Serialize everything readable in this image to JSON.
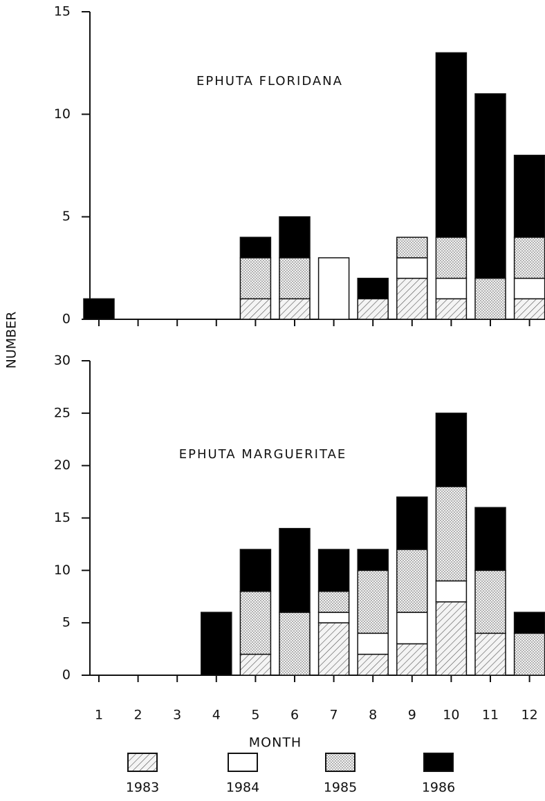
{
  "chart_data": [
    {
      "type": "stacked_bar",
      "title": "EPHUTA FLORIDANA",
      "y_label": "NUMBER",
      "ylim": [
        0,
        15
      ],
      "yticks": [
        0,
        5,
        10,
        15
      ],
      "series": [
        {
          "name": "1983",
          "pattern": "hatch",
          "color": "#000000",
          "values": [
            0,
            0,
            0,
            0,
            1,
            1,
            0,
            1,
            2,
            1,
            0,
            1
          ]
        },
        {
          "name": "1984",
          "pattern": "none",
          "color": "#ffffff",
          "values": [
            0,
            0,
            0,
            0,
            0,
            0,
            3,
            0,
            1,
            1,
            0,
            1
          ]
        },
        {
          "name": "1985",
          "pattern": "dots",
          "color": "#000000",
          "values": [
            0,
            0,
            0,
            0,
            2,
            2,
            0,
            0,
            1,
            2,
            2,
            2
          ]
        },
        {
          "name": "1986",
          "pattern": "solid",
          "color": "#000000",
          "values": [
            1,
            0,
            0,
            0,
            1,
            2,
            0,
            1,
            0,
            9,
            9,
            4
          ]
        }
      ]
    },
    {
      "type": "stacked_bar",
      "title": "EPHUTA MARGUERITAE",
      "x_label": "MONTH",
      "categories": [
        "1",
        "2",
        "3",
        "4",
        "5",
        "6",
        "7",
        "8",
        "9",
        "10",
        "11",
        "12"
      ],
      "ylim": [
        0,
        30
      ],
      "yticks": [
        0,
        5,
        10,
        15,
        20,
        25,
        30
      ],
      "series": [
        {
          "name": "1983",
          "pattern": "hatch",
          "color": "#000000",
          "values": [
            0,
            0,
            0,
            0,
            2,
            0,
            5,
            2,
            3,
            7,
            4,
            0
          ]
        },
        {
          "name": "1984",
          "pattern": "none",
          "color": "#ffffff",
          "values": [
            0,
            0,
            0,
            0,
            0,
            0,
            1,
            2,
            3,
            2,
            0,
            0
          ]
        },
        {
          "name": "1985",
          "pattern": "dots",
          "color": "#000000",
          "values": [
            0,
            0,
            0,
            0,
            6,
            6,
            2,
            6,
            6,
            9,
            6,
            4
          ]
        },
        {
          "name": "1986",
          "pattern": "solid",
          "color": "#000000",
          "values": [
            0,
            0,
            0,
            6,
            4,
            8,
            4,
            2,
            5,
            7,
            6,
            2
          ]
        }
      ]
    }
  ]
}
